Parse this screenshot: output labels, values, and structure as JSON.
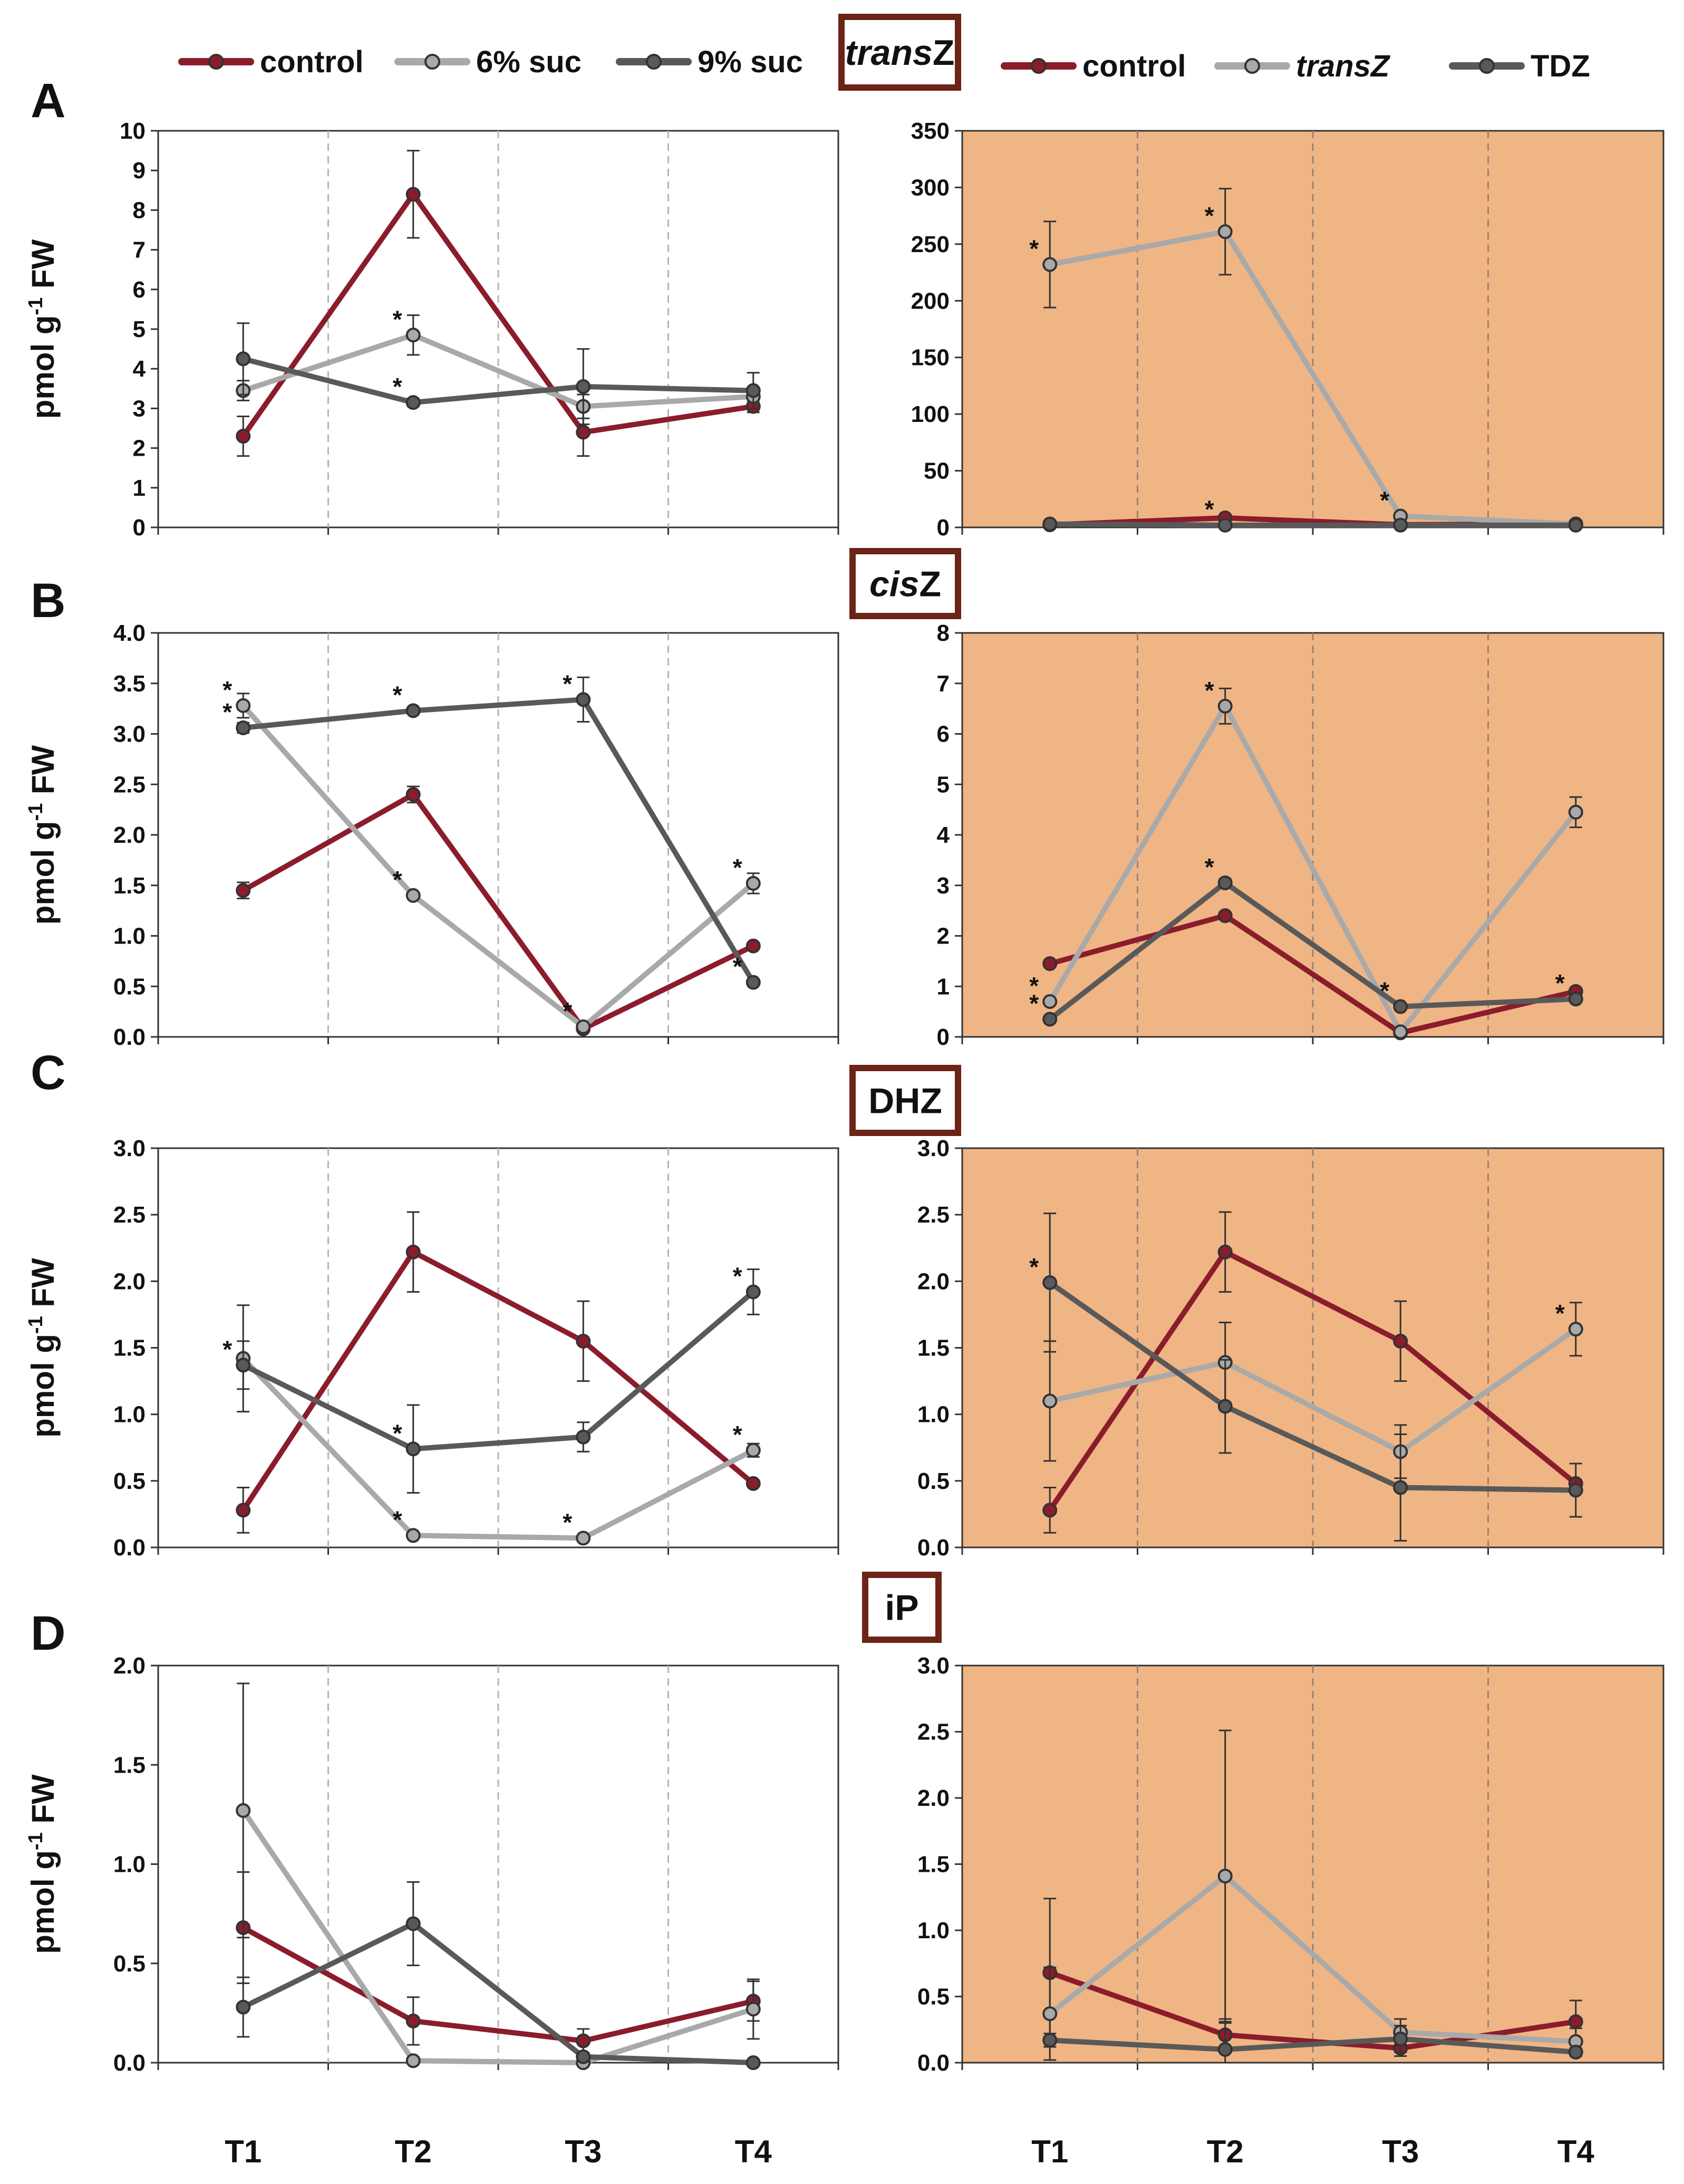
{
  "legends": {
    "left": [
      {
        "label": "control",
        "color": "#8b1c2c"
      },
      {
        "label": "6% suc",
        "color": "#a9a9a9"
      },
      {
        "label": "9% suc",
        "color": "#595959"
      }
    ],
    "right": [
      {
        "label": "control",
        "color": "#8b1c2c"
      },
      {
        "label": "transZ",
        "color": "#a9a9a9",
        "italic": true
      },
      {
        "label": "TDZ",
        "color": "#595959"
      }
    ]
  },
  "colors": {
    "control": "#8b1c2c",
    "light": "#a9a9a9",
    "dark": "#595959",
    "right_bg": "#f0b585",
    "box": "#6b2415"
  },
  "y_axis_label": "pmol g-1 FW",
  "x_categories": [
    "T1",
    "T2",
    "T3",
    "T4"
  ],
  "chart_data": [
    {
      "panel": "A",
      "title": "transZ",
      "title_italic": true,
      "side": "left",
      "type": "line",
      "categories": [
        "T1",
        "T2",
        "T3",
        "T4"
      ],
      "ylabel": "pmol g-1 FW",
      "ylim": [
        0,
        10
      ],
      "ticks": [
        "0",
        "1",
        "2",
        "3",
        "4",
        "5",
        "6",
        "7",
        "8",
        "9",
        "10"
      ],
      "series": [
        {
          "name": "control",
          "color": "#8b1c2c",
          "values": [
            2.3,
            8.4,
            2.4,
            3.05
          ],
          "err": [
            0.5,
            1.1,
            0.6,
            0.15
          ],
          "stars": [
            false,
            false,
            false,
            false
          ]
        },
        {
          "name": "6% suc",
          "color": "#a9a9a9",
          "values": [
            3.45,
            4.85,
            3.05,
            3.3
          ],
          "err": [
            0.25,
            0.5,
            0.3,
            0.15
          ],
          "stars": [
            false,
            true,
            false,
            false
          ]
        },
        {
          "name": "9% suc",
          "color": "#595959",
          "values": [
            4.25,
            3.15,
            3.55,
            3.45
          ],
          "err": [
            0.9,
            0.1,
            0.95,
            0.45
          ],
          "stars": [
            false,
            true,
            false,
            false
          ]
        }
      ]
    },
    {
      "panel": "A",
      "title": "transZ",
      "title_italic": true,
      "side": "right",
      "type": "line",
      "categories": [
        "T1",
        "T2",
        "T3",
        "T4"
      ],
      "ylabel": "",
      "ylim": [
        0,
        350
      ],
      "ticks": [
        "0",
        "50",
        "100",
        "150",
        "200",
        "250",
        "300",
        "350"
      ],
      "series": [
        {
          "name": "control",
          "color": "#8b1c2c",
          "values": [
            2.3,
            8.4,
            2.4,
            3.05
          ],
          "err": [
            0,
            0,
            0,
            0
          ],
          "stars": [
            false,
            false,
            false,
            false
          ]
        },
        {
          "name": "transZ",
          "color": "#a9a9a9",
          "values": [
            232,
            261,
            10,
            3
          ],
          "err": [
            38,
            38,
            3,
            1
          ],
          "stars": [
            true,
            true,
            true,
            false
          ]
        },
        {
          "name": "TDZ",
          "color": "#595959",
          "values": [
            3,
            2,
            2,
            2
          ],
          "err": [
            0,
            0,
            0,
            0
          ],
          "stars": [
            false,
            true,
            false,
            false
          ]
        }
      ]
    },
    {
      "panel": "B",
      "title": "cisZ",
      "title_italic": true,
      "side": "left",
      "type": "line",
      "categories": [
        "T1",
        "T2",
        "T3",
        "T4"
      ],
      "ylabel": "pmol g-1 FW",
      "ylim": [
        0,
        4
      ],
      "ticks": [
        "0.0",
        "0.5",
        "1.0",
        "1.5",
        "2.0",
        "2.5",
        "3.0",
        "3.5",
        "4.0"
      ],
      "series": [
        {
          "name": "control",
          "color": "#8b1c2c",
          "values": [
            1.45,
            2.4,
            0.08,
            0.9
          ],
          "err": [
            0.08,
            0.08,
            0.03,
            0.02
          ],
          "stars": [
            false,
            false,
            false,
            false
          ]
        },
        {
          "name": "6% suc",
          "color": "#a9a9a9",
          "values": [
            3.28,
            1.4,
            0.1,
            1.52
          ],
          "err": [
            0.12,
            0.03,
            0.03,
            0.1
          ],
          "stars": [
            true,
            true,
            true,
            true
          ]
        },
        {
          "name": "9% suc",
          "color": "#595959",
          "values": [
            3.06,
            3.23,
            3.34,
            0.54
          ],
          "err": [
            0.05,
            0.03,
            0.22,
            0.03
          ],
          "stars": [
            true,
            true,
            true,
            true
          ]
        }
      ]
    },
    {
      "panel": "B",
      "title": "cisZ",
      "title_italic": true,
      "side": "right",
      "type": "line",
      "categories": [
        "T1",
        "T2",
        "T3",
        "T4"
      ],
      "ylabel": "",
      "ylim": [
        0,
        8
      ],
      "ticks": [
        "0",
        "1",
        "2",
        "3",
        "4",
        "5",
        "6",
        "7",
        "8"
      ],
      "series": [
        {
          "name": "control",
          "color": "#8b1c2c",
          "values": [
            1.45,
            2.4,
            0.08,
            0.9
          ],
          "err": [
            0,
            0,
            0,
            0
          ],
          "stars": [
            false,
            false,
            false,
            false
          ]
        },
        {
          "name": "transZ",
          "color": "#a9a9a9",
          "values": [
            0.7,
            6.55,
            0.1,
            4.45
          ],
          "err": [
            0.05,
            0.35,
            0.05,
            0.3
          ],
          "stars": [
            true,
            true,
            false,
            false
          ]
        },
        {
          "name": "TDZ",
          "color": "#595959",
          "values": [
            0.35,
            3.05,
            0.6,
            0.75
          ],
          "err": [
            0.03,
            0.08,
            0.05,
            0.05
          ],
          "stars": [
            true,
            true,
            true,
            true
          ]
        }
      ]
    },
    {
      "panel": "C",
      "title": "DHZ",
      "title_italic": false,
      "side": "left",
      "type": "line",
      "categories": [
        "T1",
        "T2",
        "T3",
        "T4"
      ],
      "ylabel": "pmol g-1 FW",
      "ylim": [
        0,
        3
      ],
      "ticks": [
        "0.0",
        "0.5",
        "1.0",
        "1.5",
        "2.0",
        "2.5",
        "3.0"
      ],
      "series": [
        {
          "name": "control",
          "color": "#8b1c2c",
          "values": [
            0.28,
            2.22,
            1.55,
            0.48
          ],
          "err": [
            0.17,
            0.3,
            0.3,
            0.02
          ],
          "stars": [
            false,
            false,
            false,
            false
          ]
        },
        {
          "name": "6% suc",
          "color": "#a9a9a9",
          "values": [
            1.42,
            0.09,
            0.07,
            0.73
          ],
          "err": [
            0.4,
            0.02,
            0.02,
            0.05
          ],
          "stars": [
            false,
            true,
            true,
            true
          ]
        },
        {
          "name": "9% suc",
          "color": "#595959",
          "values": [
            1.37,
            0.74,
            0.83,
            1.92
          ],
          "err": [
            0.18,
            0.33,
            0.11,
            0.17
          ],
          "stars": [
            true,
            true,
            false,
            true
          ]
        }
      ]
    },
    {
      "panel": "C",
      "title": "DHZ",
      "title_italic": false,
      "side": "right",
      "type": "line",
      "categories": [
        "T1",
        "T2",
        "T3",
        "T4"
      ],
      "ylabel": "",
      "ylim": [
        0,
        3
      ],
      "ticks": [
        "0.0",
        "0.5",
        "1.0",
        "1.5",
        "2.0",
        "2.5",
        "3.0"
      ],
      "series": [
        {
          "name": "control",
          "color": "#8b1c2c",
          "values": [
            0.28,
            2.22,
            1.55,
            0.48
          ],
          "err": [
            0.17,
            0.3,
            0.3,
            0.02
          ],
          "stars": [
            false,
            false,
            false,
            false
          ]
        },
        {
          "name": "transZ",
          "color": "#a9a9a9",
          "values": [
            1.1,
            1.39,
            0.72,
            1.64
          ],
          "err": [
            0.45,
            0.3,
            0.2,
            0.2
          ],
          "stars": [
            false,
            false,
            false,
            true
          ]
        },
        {
          "name": "TDZ",
          "color": "#595959",
          "values": [
            1.99,
            1.06,
            0.45,
            0.43
          ],
          "err": [
            0.52,
            0.35,
            0.4,
            0.2
          ],
          "stars": [
            true,
            false,
            false,
            false
          ]
        }
      ]
    },
    {
      "panel": "D",
      "title": "iP",
      "title_italic": false,
      "side": "left",
      "type": "line",
      "categories": [
        "T1",
        "T2",
        "T3",
        "T4"
      ],
      "ylabel": "pmol g-1 FW",
      "ylim": [
        0,
        2
      ],
      "ticks": [
        "0.0",
        "0.5",
        "1.0",
        "1.5",
        "2.0"
      ],
      "series": [
        {
          "name": "control",
          "color": "#8b1c2c",
          "values": [
            0.68,
            0.21,
            0.11,
            0.31
          ],
          "err": [
            0.28,
            0.12,
            0.06,
            0.1
          ],
          "stars": [
            false,
            false,
            false,
            false
          ]
        },
        {
          "name": "6% suc",
          "color": "#a9a9a9",
          "values": [
            1.27,
            0.01,
            0.0,
            0.27
          ],
          "err": [
            0.64,
            0.01,
            0.0,
            0.15
          ],
          "stars": [
            false,
            false,
            false,
            false
          ]
        },
        {
          "name": "9% suc",
          "color": "#595959",
          "values": [
            0.28,
            0.7,
            0.03,
            0.0
          ],
          "err": [
            0.15,
            0.21,
            0.01,
            0.0
          ],
          "stars": [
            false,
            false,
            false,
            false
          ]
        }
      ]
    },
    {
      "panel": "D",
      "title": "iP",
      "title_italic": false,
      "side": "right",
      "type": "line",
      "categories": [
        "T1",
        "T2",
        "T3",
        "T4"
      ],
      "ylabel": "",
      "ylim": [
        0,
        3
      ],
      "ticks": [
        "0.0",
        "0.5",
        "1.0",
        "1.5",
        "2.0",
        "2.5",
        "3.0"
      ],
      "series": [
        {
          "name": "control",
          "color": "#8b1c2c",
          "values": [
            0.68,
            0.21,
            0.11,
            0.31
          ],
          "err": [
            0.56,
            0.12,
            0.06,
            0.16
          ],
          "stars": [
            false,
            false,
            false,
            false
          ]
        },
        {
          "name": "transZ",
          "color": "#a9a9a9",
          "values": [
            0.37,
            1.41,
            0.23,
            0.16
          ],
          "err": [
            0.35,
            1.1,
            0.1,
            0.1
          ],
          "stars": [
            false,
            false,
            false,
            false
          ]
        },
        {
          "name": "TDZ",
          "color": "#595959",
          "values": [
            0.17,
            0.1,
            0.18,
            0.08
          ],
          "err": [
            0.05,
            0.2,
            0.1,
            0.03
          ],
          "stars": [
            false,
            false,
            false,
            false
          ]
        }
      ]
    }
  ]
}
